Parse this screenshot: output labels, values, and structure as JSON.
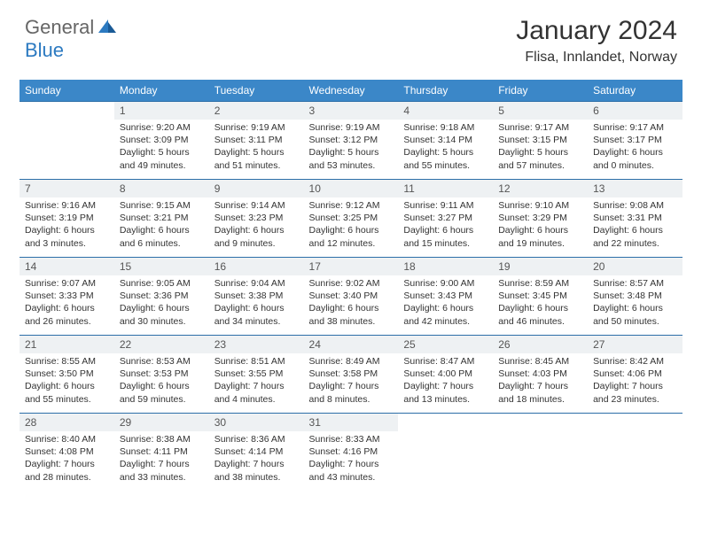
{
  "logo": {
    "text1": "General",
    "text2": "Blue"
  },
  "title": "January 2024",
  "location": "Flisa, Innlandet, Norway",
  "colors": {
    "header_bg": "#3b87c8",
    "header_text": "#ffffff",
    "daynum_bg": "#eef1f3",
    "cell_border": "#2c6ea8",
    "logo_blue": "#2c7ac1",
    "logo_gray": "#666666"
  },
  "weekdays": [
    "Sunday",
    "Monday",
    "Tuesday",
    "Wednesday",
    "Thursday",
    "Friday",
    "Saturday"
  ],
  "weeks": [
    [
      {
        "day": "",
        "sunrise": "",
        "sunset": "",
        "daylight": ""
      },
      {
        "day": "1",
        "sunrise": "Sunrise: 9:20 AM",
        "sunset": "Sunset: 3:09 PM",
        "daylight": "Daylight: 5 hours and 49 minutes."
      },
      {
        "day": "2",
        "sunrise": "Sunrise: 9:19 AM",
        "sunset": "Sunset: 3:11 PM",
        "daylight": "Daylight: 5 hours and 51 minutes."
      },
      {
        "day": "3",
        "sunrise": "Sunrise: 9:19 AM",
        "sunset": "Sunset: 3:12 PM",
        "daylight": "Daylight: 5 hours and 53 minutes."
      },
      {
        "day": "4",
        "sunrise": "Sunrise: 9:18 AM",
        "sunset": "Sunset: 3:14 PM",
        "daylight": "Daylight: 5 hours and 55 minutes."
      },
      {
        "day": "5",
        "sunrise": "Sunrise: 9:17 AM",
        "sunset": "Sunset: 3:15 PM",
        "daylight": "Daylight: 5 hours and 57 minutes."
      },
      {
        "day": "6",
        "sunrise": "Sunrise: 9:17 AM",
        "sunset": "Sunset: 3:17 PM",
        "daylight": "Daylight: 6 hours and 0 minutes."
      }
    ],
    [
      {
        "day": "7",
        "sunrise": "Sunrise: 9:16 AM",
        "sunset": "Sunset: 3:19 PM",
        "daylight": "Daylight: 6 hours and 3 minutes."
      },
      {
        "day": "8",
        "sunrise": "Sunrise: 9:15 AM",
        "sunset": "Sunset: 3:21 PM",
        "daylight": "Daylight: 6 hours and 6 minutes."
      },
      {
        "day": "9",
        "sunrise": "Sunrise: 9:14 AM",
        "sunset": "Sunset: 3:23 PM",
        "daylight": "Daylight: 6 hours and 9 minutes."
      },
      {
        "day": "10",
        "sunrise": "Sunrise: 9:12 AM",
        "sunset": "Sunset: 3:25 PM",
        "daylight": "Daylight: 6 hours and 12 minutes."
      },
      {
        "day": "11",
        "sunrise": "Sunrise: 9:11 AM",
        "sunset": "Sunset: 3:27 PM",
        "daylight": "Daylight: 6 hours and 15 minutes."
      },
      {
        "day": "12",
        "sunrise": "Sunrise: 9:10 AM",
        "sunset": "Sunset: 3:29 PM",
        "daylight": "Daylight: 6 hours and 19 minutes."
      },
      {
        "day": "13",
        "sunrise": "Sunrise: 9:08 AM",
        "sunset": "Sunset: 3:31 PM",
        "daylight": "Daylight: 6 hours and 22 minutes."
      }
    ],
    [
      {
        "day": "14",
        "sunrise": "Sunrise: 9:07 AM",
        "sunset": "Sunset: 3:33 PM",
        "daylight": "Daylight: 6 hours and 26 minutes."
      },
      {
        "day": "15",
        "sunrise": "Sunrise: 9:05 AM",
        "sunset": "Sunset: 3:36 PM",
        "daylight": "Daylight: 6 hours and 30 minutes."
      },
      {
        "day": "16",
        "sunrise": "Sunrise: 9:04 AM",
        "sunset": "Sunset: 3:38 PM",
        "daylight": "Daylight: 6 hours and 34 minutes."
      },
      {
        "day": "17",
        "sunrise": "Sunrise: 9:02 AM",
        "sunset": "Sunset: 3:40 PM",
        "daylight": "Daylight: 6 hours and 38 minutes."
      },
      {
        "day": "18",
        "sunrise": "Sunrise: 9:00 AM",
        "sunset": "Sunset: 3:43 PM",
        "daylight": "Daylight: 6 hours and 42 minutes."
      },
      {
        "day": "19",
        "sunrise": "Sunrise: 8:59 AM",
        "sunset": "Sunset: 3:45 PM",
        "daylight": "Daylight: 6 hours and 46 minutes."
      },
      {
        "day": "20",
        "sunrise": "Sunrise: 8:57 AM",
        "sunset": "Sunset: 3:48 PM",
        "daylight": "Daylight: 6 hours and 50 minutes."
      }
    ],
    [
      {
        "day": "21",
        "sunrise": "Sunrise: 8:55 AM",
        "sunset": "Sunset: 3:50 PM",
        "daylight": "Daylight: 6 hours and 55 minutes."
      },
      {
        "day": "22",
        "sunrise": "Sunrise: 8:53 AM",
        "sunset": "Sunset: 3:53 PM",
        "daylight": "Daylight: 6 hours and 59 minutes."
      },
      {
        "day": "23",
        "sunrise": "Sunrise: 8:51 AM",
        "sunset": "Sunset: 3:55 PM",
        "daylight": "Daylight: 7 hours and 4 minutes."
      },
      {
        "day": "24",
        "sunrise": "Sunrise: 8:49 AM",
        "sunset": "Sunset: 3:58 PM",
        "daylight": "Daylight: 7 hours and 8 minutes."
      },
      {
        "day": "25",
        "sunrise": "Sunrise: 8:47 AM",
        "sunset": "Sunset: 4:00 PM",
        "daylight": "Daylight: 7 hours and 13 minutes."
      },
      {
        "day": "26",
        "sunrise": "Sunrise: 8:45 AM",
        "sunset": "Sunset: 4:03 PM",
        "daylight": "Daylight: 7 hours and 18 minutes."
      },
      {
        "day": "27",
        "sunrise": "Sunrise: 8:42 AM",
        "sunset": "Sunset: 4:06 PM",
        "daylight": "Daylight: 7 hours and 23 minutes."
      }
    ],
    [
      {
        "day": "28",
        "sunrise": "Sunrise: 8:40 AM",
        "sunset": "Sunset: 4:08 PM",
        "daylight": "Daylight: 7 hours and 28 minutes."
      },
      {
        "day": "29",
        "sunrise": "Sunrise: 8:38 AM",
        "sunset": "Sunset: 4:11 PM",
        "daylight": "Daylight: 7 hours and 33 minutes."
      },
      {
        "day": "30",
        "sunrise": "Sunrise: 8:36 AM",
        "sunset": "Sunset: 4:14 PM",
        "daylight": "Daylight: 7 hours and 38 minutes."
      },
      {
        "day": "31",
        "sunrise": "Sunrise: 8:33 AM",
        "sunset": "Sunset: 4:16 PM",
        "daylight": "Daylight: 7 hours and 43 minutes."
      },
      {
        "day": "",
        "sunrise": "",
        "sunset": "",
        "daylight": ""
      },
      {
        "day": "",
        "sunrise": "",
        "sunset": "",
        "daylight": ""
      },
      {
        "day": "",
        "sunrise": "",
        "sunset": "",
        "daylight": ""
      }
    ]
  ]
}
